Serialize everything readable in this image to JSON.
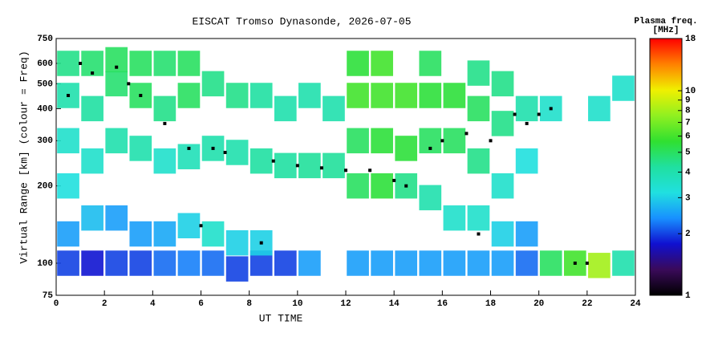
{
  "chart_data": {
    "type": "heatmap",
    "title": "EISCAT Tromso Dynasonde, 2026-07-05",
    "x_label": "UT TIME",
    "y_label": "Virtual Range [km] (colour = Freq)",
    "colorbar_label": "Plasma freq.",
    "colorbar_unit": "[MHz]",
    "log_y": true,
    "xlim": [
      0,
      24
    ],
    "xticks": [
      0,
      2,
      4,
      6,
      8,
      10,
      12,
      14,
      16,
      18,
      20,
      22,
      24
    ],
    "ylim": [
      75,
      750
    ],
    "yticks": [
      75,
      100,
      200,
      300,
      400,
      500,
      600,
      750
    ],
    "clim": [
      1,
      18
    ],
    "cticks": [
      1,
      2,
      3,
      4,
      5,
      6,
      7,
      8,
      9,
      10,
      18
    ],
    "colormap": [
      "#000000",
      "#3a0a5a",
      "#1010d0",
      "#1890ff",
      "#20e0e0",
      "#20e0a0",
      "#30e030",
      "#90f020",
      "#f0f000",
      "#ff8000",
      "#ff0000"
    ],
    "x": [
      0.5,
      0.5,
      0.5,
      0.5,
      0.5,
      0.5,
      1.5,
      1.5,
      1.5,
      1.5,
      1.5,
      2.5,
      2.5,
      2.5,
      2.5,
      2.5,
      3.5,
      3.5,
      3.5,
      3.5,
      3.5,
      4.5,
      4.5,
      4.5,
      4.5,
      4.5,
      5.5,
      5.5,
      5.5,
      5.5,
      5.5,
      6.5,
      6.5,
      6.5,
      6.5,
      7.5,
      7.5,
      7.5,
      7.5,
      8.5,
      8.5,
      8.5,
      8.5,
      9.5,
      9.5,
      9.5,
      10.5,
      10.5,
      10.5,
      11.5,
      11.5,
      12.5,
      12.5,
      12.5,
      12.5,
      12.5,
      13.5,
      13.5,
      13.5,
      13.5,
      13.5,
      14.5,
      14.5,
      14.5,
      14.5,
      15.5,
      15.5,
      15.5,
      15.5,
      15.5,
      16.5,
      16.5,
      16.5,
      16.5,
      17.5,
      17.5,
      17.5,
      17.5,
      17.5,
      18.5,
      18.5,
      18.5,
      18.5,
      18.5,
      19.5,
      19.5,
      19.5,
      19.5,
      20.5,
      20.5,
      21.5,
      22.5,
      22.5,
      23.5,
      23.5
    ],
    "y": [
      100,
      130,
      200,
      300,
      450,
      600,
      100,
      150,
      250,
      400,
      600,
      100,
      150,
      300,
      500,
      620,
      100,
      130,
      280,
      450,
      600,
      100,
      130,
      250,
      400,
      600,
      100,
      140,
      260,
      450,
      600,
      100,
      130,
      280,
      500,
      95,
      120,
      270,
      450,
      100,
      120,
      250,
      450,
      100,
      240,
      400,
      100,
      240,
      450,
      240,
      400,
      100,
      200,
      300,
      450,
      600,
      100,
      200,
      300,
      450,
      600,
      100,
      200,
      280,
      450,
      100,
      180,
      300,
      450,
      600,
      100,
      150,
      300,
      450,
      100,
      150,
      250,
      400,
      550,
      100,
      130,
      200,
      350,
      500,
      100,
      130,
      250,
      400,
      100,
      400,
      100,
      98,
      400,
      100,
      480
    ],
    "values": [
      2,
      2.5,
      3.2,
      3.5,
      4,
      4.5,
      1.8,
      2.8,
      3.5,
      4.2,
      4.8,
      2,
      2.5,
      4,
      4.8,
      5,
      2,
      2.5,
      4,
      5,
      5,
      2.2,
      2.6,
      3.5,
      4.5,
      4.8,
      2.3,
      3,
      3.8,
      5,
      5,
      2.2,
      3.5,
      4,
      4.5,
      2,
      3,
      4,
      4.5,
      2,
      3,
      4.2,
      4.2,
      2,
      4.2,
      4,
      2.5,
      4.3,
      4,
      4.3,
      4,
      2.5,
      5,
      5,
      6,
      5.5,
      2.5,
      5.5,
      5.5,
      6,
      6,
      2.5,
      4.5,
      5.5,
      6,
      2.5,
      4,
      5,
      5.5,
      5,
      2.5,
      3.5,
      5,
      5.5,
      2.5,
      3.5,
      4.5,
      5,
      4.5,
      2.5,
      3,
      3.5,
      4.5,
      4.5,
      2.2,
      2.5,
      3.2,
      4,
      5,
      3.5,
      6,
      8,
      3.5,
      4,
      3.5
    ],
    "markers": {
      "color": "#000000",
      "x": [
        0.5,
        1,
        1.5,
        2.5,
        3,
        3.5,
        4.5,
        5.5,
        6,
        6.5,
        7,
        8.5,
        9,
        10,
        11,
        12,
        13,
        14,
        14.5,
        15.5,
        16,
        17,
        17.5,
        18,
        19,
        19.5,
        20,
        20.5,
        21.5,
        22
      ],
      "y": [
        450,
        600,
        550,
        580,
        500,
        450,
        350,
        280,
        140,
        280,
        270,
        120,
        250,
        240,
        235,
        230,
        230,
        210,
        200,
        280,
        300,
        320,
        130,
        300,
        380,
        350,
        380,
        400,
        100,
        100
      ]
    }
  }
}
